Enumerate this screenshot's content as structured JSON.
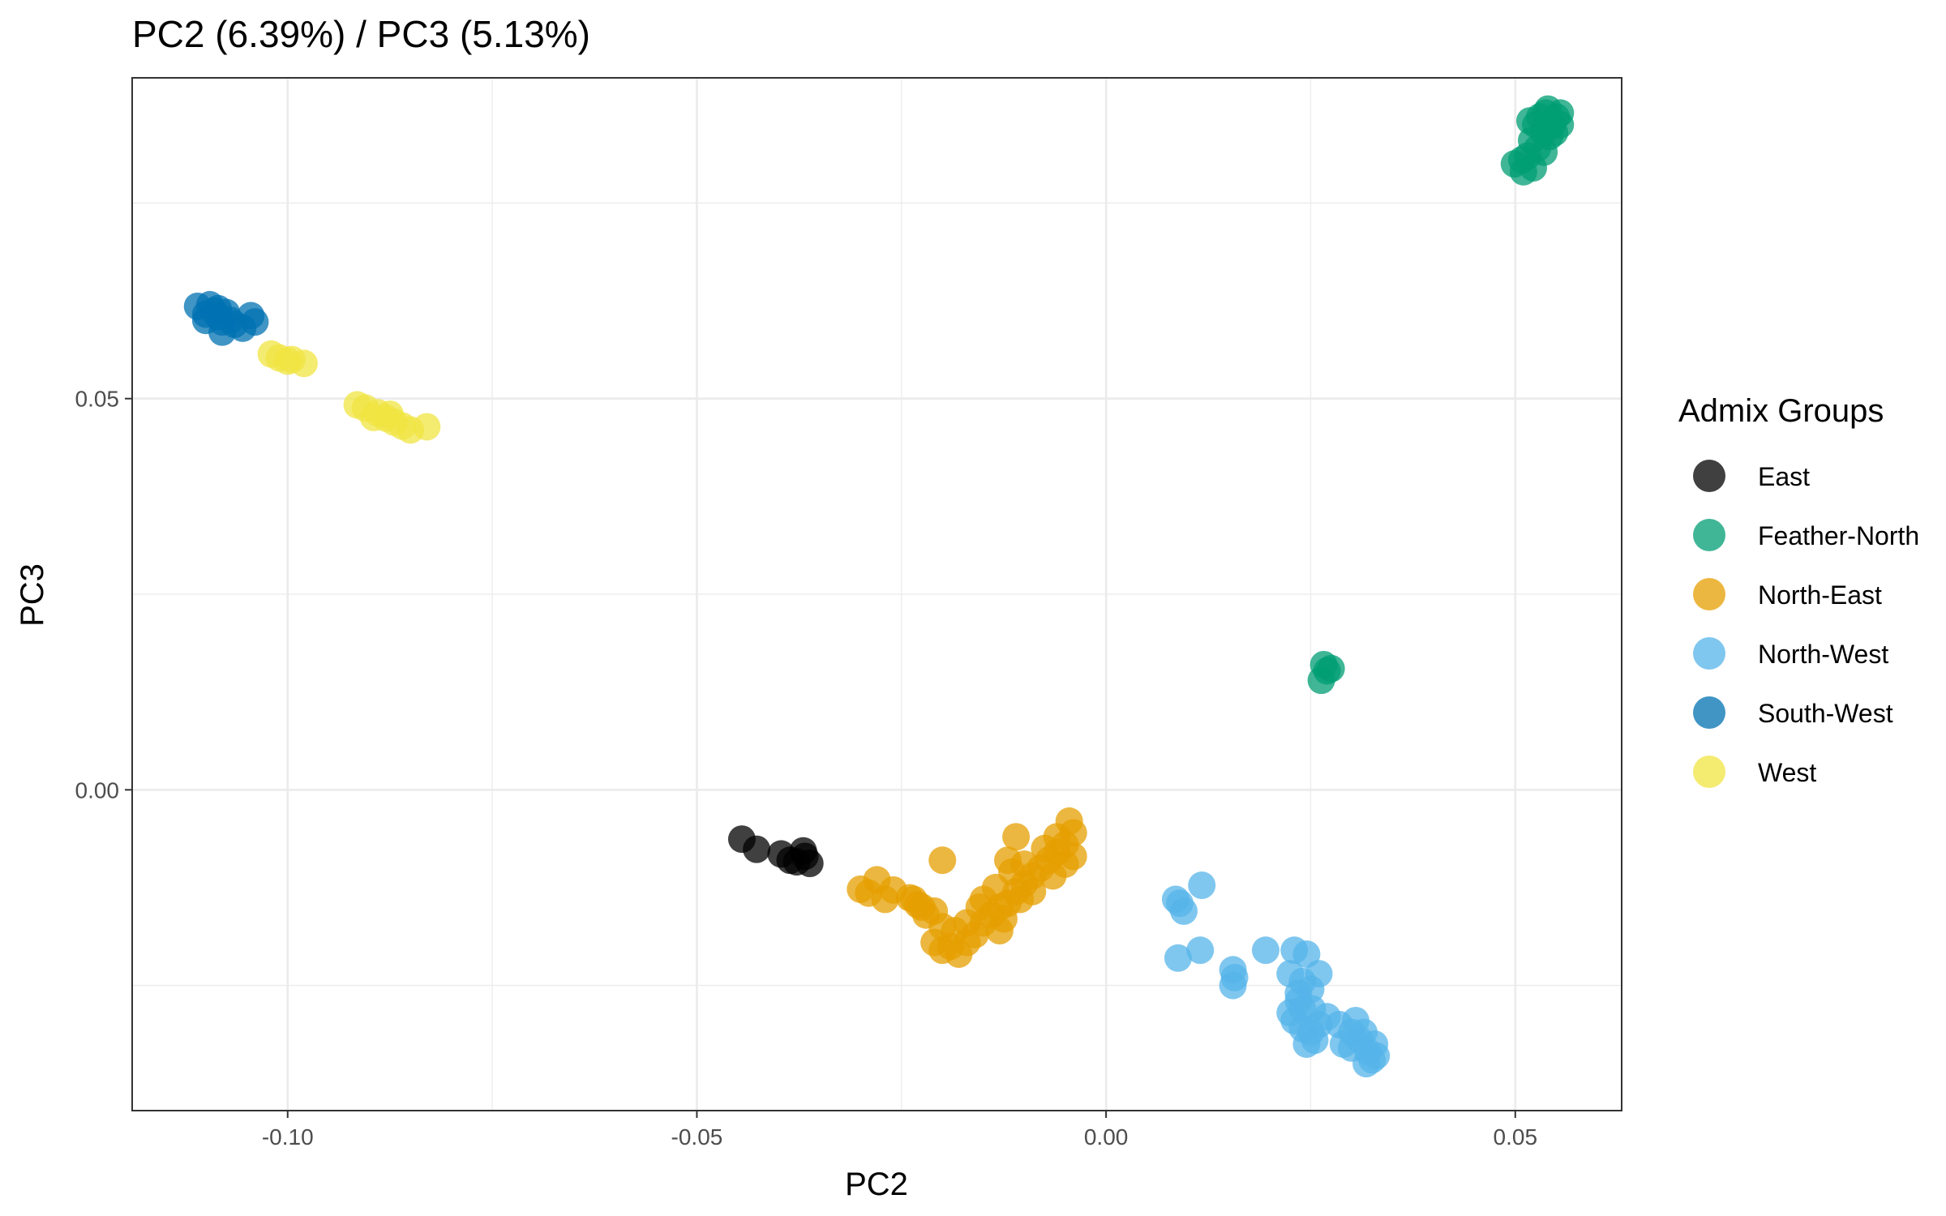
{
  "chart_data": {
    "type": "scatter",
    "title": "PC2 (6.39%) / PC3 (5.13%)",
    "xlabel": "PC2",
    "ylabel": "PC3",
    "xlim": [
      -0.119,
      0.063
    ],
    "ylim": [
      -0.041,
      0.091
    ],
    "xticks": [
      -0.1,
      -0.05,
      0.0,
      0.05
    ],
    "xtick_labels": [
      "-0.10",
      "-0.05",
      "0.00",
      "0.05"
    ],
    "yticks": [
      0.0,
      0.05
    ],
    "ytick_labels": [
      "0.00",
      "0.05"
    ],
    "grid": true,
    "legend": {
      "title": "Admix Groups",
      "placement": "right"
    },
    "series": [
      {
        "name": "East",
        "color": "#000000",
        "points": [
          [
            -0.0445,
            -0.0063
          ],
          [
            -0.0427,
            -0.0076
          ],
          [
            -0.0397,
            -0.0082
          ],
          [
            -0.0378,
            -0.0092
          ],
          [
            -0.0368,
            -0.0085
          ],
          [
            -0.0362,
            -0.0094
          ],
          [
            -0.037,
            -0.0078
          ],
          [
            -0.0386,
            -0.009
          ]
        ]
      },
      {
        "name": "Feather-North",
        "color": "#009E73",
        "points": [
          [
            0.0499,
            0.08
          ],
          [
            0.051,
            0.079
          ],
          [
            0.0515,
            0.081
          ],
          [
            0.052,
            0.083
          ],
          [
            0.0525,
            0.085
          ],
          [
            0.053,
            0.086
          ],
          [
            0.0535,
            0.084
          ],
          [
            0.054,
            0.087
          ],
          [
            0.0545,
            0.085
          ],
          [
            0.055,
            0.086
          ],
          [
            0.0555,
            0.0865
          ],
          [
            0.0518,
            0.0855
          ],
          [
            0.0508,
            0.0805
          ],
          [
            0.0527,
            0.082
          ],
          [
            0.0535,
            0.0815
          ],
          [
            0.0542,
            0.0835
          ],
          [
            0.0522,
            0.0795
          ],
          [
            0.0537,
            0.0865
          ],
          [
            0.0555,
            0.085
          ],
          [
            0.0548,
            0.084
          ],
          [
            0.0263,
            0.014
          ],
          [
            0.027,
            0.0152
          ],
          [
            0.0275,
            0.0155
          ],
          [
            0.0266,
            0.016
          ]
        ]
      },
      {
        "name": "North-East",
        "color": "#E69F00",
        "points": [
          [
            -0.03,
            -0.0127
          ],
          [
            -0.029,
            -0.0132
          ],
          [
            -0.028,
            -0.0115
          ],
          [
            -0.026,
            -0.0128
          ],
          [
            -0.024,
            -0.0138
          ],
          [
            -0.023,
            -0.0147
          ],
          [
            -0.0225,
            -0.015
          ],
          [
            -0.022,
            -0.016
          ],
          [
            -0.021,
            -0.0155
          ],
          [
            -0.02,
            -0.0175
          ],
          [
            -0.02,
            -0.0205
          ],
          [
            -0.019,
            -0.02
          ],
          [
            -0.018,
            -0.021
          ],
          [
            -0.017,
            -0.0195
          ],
          [
            -0.016,
            -0.0185
          ],
          [
            -0.015,
            -0.017
          ],
          [
            -0.014,
            -0.016
          ],
          [
            -0.013,
            -0.015
          ],
          [
            -0.012,
            -0.0145
          ],
          [
            -0.011,
            -0.013
          ],
          [
            -0.01,
            -0.012
          ],
          [
            -0.009,
            -0.011
          ],
          [
            -0.008,
            -0.01
          ],
          [
            -0.007,
            -0.009
          ],
          [
            -0.006,
            -0.008
          ],
          [
            -0.005,
            -0.007
          ],
          [
            -0.004,
            -0.0055
          ],
          [
            -0.0045,
            -0.004
          ],
          [
            -0.011,
            -0.006
          ],
          [
            -0.012,
            -0.009
          ],
          [
            -0.02,
            -0.009
          ],
          [
            -0.015,
            -0.014
          ],
          [
            -0.013,
            -0.018
          ],
          [
            -0.017,
            -0.017
          ],
          [
            -0.009,
            -0.013
          ],
          [
            -0.0065,
            -0.011
          ],
          [
            -0.005,
            -0.0095
          ],
          [
            -0.004,
            -0.0085
          ],
          [
            -0.006,
            -0.006
          ],
          [
            -0.0075,
            -0.0075
          ],
          [
            -0.01,
            -0.0095
          ],
          [
            -0.0115,
            -0.0105
          ],
          [
            -0.0135,
            -0.0125
          ],
          [
            -0.0155,
            -0.015
          ],
          [
            -0.0185,
            -0.018
          ],
          [
            -0.021,
            -0.0195
          ],
          [
            -0.0235,
            -0.014
          ],
          [
            -0.027,
            -0.014
          ],
          [
            -0.0105,
            -0.014
          ],
          [
            -0.0125,
            -0.0165
          ]
        ]
      },
      {
        "name": "North-West",
        "color": "#56B4E9",
        "points": [
          [
            0.0117,
            -0.0122
          ],
          [
            0.009,
            -0.0145
          ],
          [
            0.0085,
            -0.014
          ],
          [
            0.0095,
            -0.0155
          ],
          [
            0.0115,
            -0.0205
          ],
          [
            0.0088,
            -0.0215
          ],
          [
            0.0155,
            -0.023
          ],
          [
            0.0157,
            -0.024
          ],
          [
            0.0155,
            -0.025
          ],
          [
            0.0195,
            -0.0205
          ],
          [
            0.023,
            -0.0205
          ],
          [
            0.0245,
            -0.021
          ],
          [
            0.0225,
            -0.0235
          ],
          [
            0.024,
            -0.0245
          ],
          [
            0.025,
            -0.0255
          ],
          [
            0.026,
            -0.0235
          ],
          [
            0.0235,
            -0.026
          ],
          [
            0.0225,
            -0.0285
          ],
          [
            0.023,
            -0.0295
          ],
          [
            0.024,
            -0.0305
          ],
          [
            0.025,
            -0.031
          ],
          [
            0.026,
            -0.03
          ],
          [
            0.027,
            -0.029
          ],
          [
            0.0285,
            -0.03
          ],
          [
            0.03,
            -0.031
          ],
          [
            0.031,
            -0.032
          ],
          [
            0.032,
            -0.0335
          ],
          [
            0.0325,
            -0.0345
          ],
          [
            0.033,
            -0.034
          ],
          [
            0.0318,
            -0.035
          ],
          [
            0.03,
            -0.033
          ],
          [
            0.029,
            -0.0325
          ],
          [
            0.0245,
            -0.0325
          ],
          [
            0.0255,
            -0.032
          ],
          [
            0.024,
            -0.028
          ],
          [
            0.0235,
            -0.027
          ],
          [
            0.0252,
            -0.028
          ],
          [
            0.0315,
            -0.031
          ],
          [
            0.0328,
            -0.0325
          ],
          [
            0.0305,
            -0.0295
          ]
        ]
      },
      {
        "name": "South-West",
        "color": "#0072B2",
        "points": [
          [
            -0.111,
            0.0618
          ],
          [
            -0.11,
            0.0608
          ],
          [
            -0.1095,
            0.062
          ],
          [
            -0.109,
            0.0612
          ],
          [
            -0.1085,
            0.0605
          ],
          [
            -0.108,
            0.0598
          ],
          [
            -0.1075,
            0.061
          ],
          [
            -0.107,
            0.06
          ],
          [
            -0.1065,
            0.0595
          ],
          [
            -0.1055,
            0.059
          ],
          [
            -0.1045,
            0.0606
          ],
          [
            -0.104,
            0.0598
          ],
          [
            -0.108,
            0.0585
          ],
          [
            -0.11,
            0.06
          ],
          [
            -0.1085,
            0.0615
          ]
        ]
      },
      {
        "name": "West",
        "color": "#F0E442",
        "points": [
          [
            -0.102,
            0.0557
          ],
          [
            -0.101,
            0.0552
          ],
          [
            -0.1,
            0.0548
          ],
          [
            -0.0995,
            0.055
          ],
          [
            -0.098,
            0.0545
          ],
          [
            -0.0915,
            0.0492
          ],
          [
            -0.0905,
            0.0488
          ],
          [
            -0.089,
            0.0482
          ],
          [
            -0.088,
            0.0475
          ],
          [
            -0.087,
            0.047
          ],
          [
            -0.086,
            0.0465
          ],
          [
            -0.085,
            0.046
          ],
          [
            -0.083,
            0.0464
          ],
          [
            -0.0875,
            0.048
          ],
          [
            -0.0895,
            0.0476
          ]
        ]
      }
    ]
  }
}
